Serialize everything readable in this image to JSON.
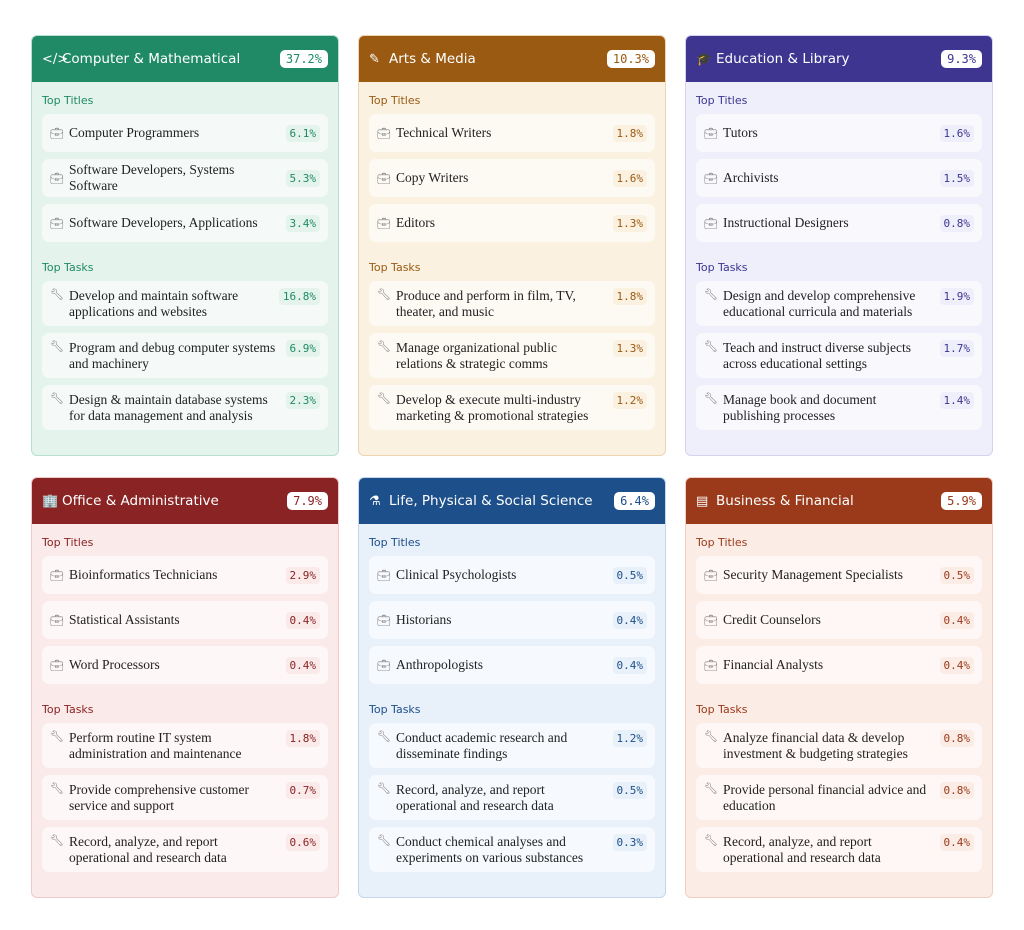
{
  "section_labels": {
    "titles": "Top Titles",
    "tasks": "Top Tasks"
  },
  "cards": [
    {
      "name": "Computer & Mathematical",
      "pct": "37.2%",
      "icon": "code-icon",
      "glyph": "</>",
      "color": "#1f8a65",
      "bg": "#e5f3ed",
      "border": "#b9dfcf",
      "titles": [
        [
          "Computer Programmers",
          "6.1%"
        ],
        [
          "Software Developers, Systems Software",
          "5.3%"
        ],
        [
          "Software Developers, Applications",
          "3.4%"
        ]
      ],
      "tasks": [
        [
          "Develop and maintain software applications and websites",
          "16.8%"
        ],
        [
          "Program and debug computer systems and machinery",
          "6.9%"
        ],
        [
          "Design & maintain database systems for data management and analysis",
          "2.3%"
        ]
      ]
    },
    {
      "name": "Arts & Media",
      "pct": "10.3%",
      "icon": "brush-icon",
      "glyph": "✎",
      "color": "#9a5a12",
      "bg": "#fbf1e1",
      "border": "#ecd5b0",
      "titles": [
        [
          "Technical Writers",
          "1.8%"
        ],
        [
          "Copy Writers",
          "1.6%"
        ],
        [
          "Editors",
          "1.3%"
        ]
      ],
      "tasks": [
        [
          "Produce and perform in film, TV, theater, and music",
          "1.8%"
        ],
        [
          "Manage organizational public relations & strategic comms",
          "1.3%"
        ],
        [
          "Develop & execute multi-industry marketing & promotional strategies",
          "1.2%"
        ]
      ]
    },
    {
      "name": "Education & Library",
      "pct": "9.3%",
      "icon": "graduation-cap-icon",
      "glyph": "🎓",
      "color": "#3d3590",
      "bg": "#efeffb",
      "border": "#d3d2ef",
      "titles": [
        [
          "Tutors",
          "1.6%"
        ],
        [
          "Archivists",
          "1.5%"
        ],
        [
          "Instructional Designers",
          "0.8%"
        ]
      ],
      "tasks": [
        [
          "Design and develop comprehensive educational curricula and materials",
          "1.9%"
        ],
        [
          "Teach and instruct diverse subjects across educational settings",
          "1.7%"
        ],
        [
          "Manage book and document publishing processes",
          "1.4%"
        ]
      ]
    },
    {
      "name": "Office & Administrative",
      "pct": "7.9%",
      "icon": "building-icon",
      "glyph": "🏢",
      "color": "#8a2323",
      "bg": "#fbeaea",
      "border": "#efc9c9",
      "titles": [
        [
          "Bioinformatics Technicians",
          "2.9%"
        ],
        [
          "Statistical Assistants",
          "0.4%"
        ],
        [
          "Word Processors",
          "0.4%"
        ]
      ],
      "tasks": [
        [
          "Perform routine IT system administration and maintenance",
          "1.8%"
        ],
        [
          "Provide comprehensive customer service and support",
          "0.7%"
        ],
        [
          "Record, analyze, and report operational and research data",
          "0.6%"
        ]
      ]
    },
    {
      "name": "Life, Physical & Social Science",
      "pct": "6.4%",
      "icon": "flask-icon",
      "glyph": "⚗",
      "color": "#1d4f8a",
      "bg": "#e8f0fa",
      "border": "#c5d7ee",
      "titles": [
        [
          "Clinical Psychologists",
          "0.5%"
        ],
        [
          "Historians",
          "0.4%"
        ],
        [
          "Anthropologists",
          "0.4%"
        ]
      ],
      "tasks": [
        [
          "Conduct academic research and disseminate findings",
          "1.2%"
        ],
        [
          "Record, analyze, and report operational and research data",
          "0.5%"
        ],
        [
          "Conduct chemical analyses and experiments on various substances",
          "0.3%"
        ]
      ]
    },
    {
      "name": "Business & Financial",
      "pct": "5.9%",
      "icon": "table-icon",
      "glyph": "▤",
      "color": "#9a3a1a",
      "bg": "#fcece6",
      "border": "#f0cfc2",
      "titles": [
        [
          "Security Management Specialists",
          "0.5%"
        ],
        [
          "Credit Counselors",
          "0.4%"
        ],
        [
          "Financial Analysts",
          "0.4%"
        ]
      ],
      "tasks": [
        [
          "Analyze financial data & develop investment & budgeting strategies",
          "0.8%"
        ],
        [
          "Provide personal financial advice and education",
          "0.8%"
        ],
        [
          "Record, analyze, and report operational and research data",
          "0.4%"
        ]
      ]
    }
  ]
}
